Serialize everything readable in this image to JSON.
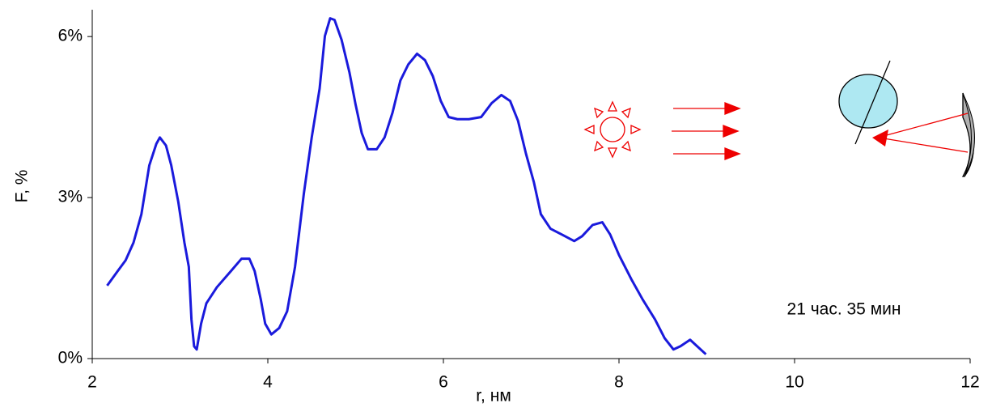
{
  "chart_data": {
    "type": "line",
    "annotation": "21 час. 35 мин",
    "xlabel": "r, нм",
    "ylabel": "F, %",
    "xlim": [
      2,
      12
    ],
    "xticks": [
      2,
      4,
      6,
      8,
      10,
      12
    ],
    "ylim": [
      0,
      6.5
    ],
    "yticks": [
      {
        "value": 0,
        "label": "0%"
      },
      {
        "value": 3,
        "label": "3%"
      },
      {
        "value": 6,
        "label": "6%"
      }
    ],
    "series": [
      {
        "color": "#1a1adc",
        "x": [
          2.17,
          2.29,
          2.38,
          2.47,
          2.56,
          2.65,
          2.73,
          2.77,
          2.84,
          2.9,
          2.98,
          3.05,
          3.1,
          3.13,
          3.16,
          3.19,
          3.24,
          3.3,
          3.42,
          3.58,
          3.7,
          3.79,
          3.85,
          3.92,
          3.97,
          4.04,
          4.13,
          4.22,
          4.31,
          4.41,
          4.5,
          4.59,
          4.65,
          4.71,
          4.76,
          4.84,
          4.93,
          5.0,
          5.07,
          5.14,
          5.24,
          5.33,
          5.42,
          5.51,
          5.6,
          5.7,
          5.79,
          5.88,
          5.97,
          6.06,
          6.16,
          6.29,
          6.43,
          6.55,
          6.66,
          6.76,
          6.85,
          6.94,
          7.03,
          7.11,
          7.22,
          7.35,
          7.49,
          7.58,
          7.7,
          7.81,
          7.9,
          8.0,
          8.14,
          8.27,
          8.41,
          8.52,
          8.62,
          8.7,
          8.81,
          8.89,
          8.99
        ],
        "values": [
          1.36,
          1.63,
          1.83,
          2.16,
          2.69,
          3.6,
          4.0,
          4.12,
          3.97,
          3.6,
          2.92,
          2.16,
          1.71,
          0.73,
          0.23,
          0.17,
          0.65,
          1.03,
          1.33,
          1.63,
          1.86,
          1.86,
          1.63,
          1.1,
          0.65,
          0.45,
          0.57,
          0.88,
          1.71,
          3.07,
          4.12,
          5.03,
          6.01,
          6.34,
          6.31,
          5.94,
          5.33,
          4.73,
          4.2,
          3.9,
          3.9,
          4.12,
          4.58,
          5.18,
          5.48,
          5.68,
          5.56,
          5.26,
          4.8,
          4.5,
          4.46,
          4.46,
          4.5,
          4.76,
          4.91,
          4.8,
          4.43,
          3.82,
          3.29,
          2.69,
          2.42,
          2.31,
          2.19,
          2.28,
          2.49,
          2.54,
          2.31,
          1.93,
          1.48,
          1.1,
          0.73,
          0.38,
          0.17,
          0.23,
          0.35,
          0.23,
          0.08
        ]
      }
    ]
  }
}
